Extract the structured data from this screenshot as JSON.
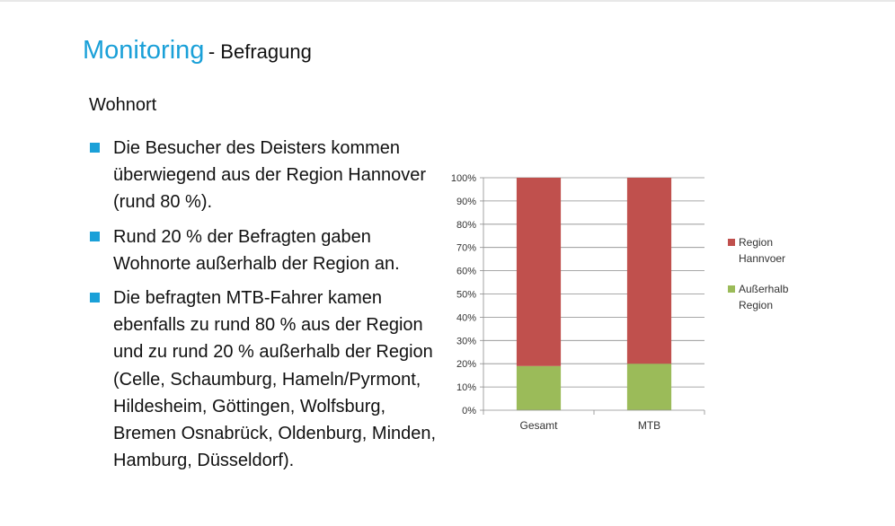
{
  "slide": {
    "title_main": "Monitoring",
    "title_sub": "- Befragung",
    "section_heading": "Wohnort",
    "accent_color": "#1aa0d8",
    "bullets": [
      "Die Besucher des Deisters kommen überwiegend aus der Region Hannover (rund 80 %).",
      "Rund 20 % der Befragten gaben Wohnorte außerhalb der Region an.",
      "Die befragten MTB-Fahrer kamen ebenfalls zu rund 80 % aus der Region und zu rund 20 % außerhalb der Region (Celle, Schaumburg, Hameln/Pyrmont, Hildesheim, Göttingen, Wolfsburg, Bremen Osnabrück, Oldenburg, Minden, Hamburg, Düsseldorf)."
    ]
  },
  "chart_data": {
    "type": "bar",
    "stacked": true,
    "percent_axis": true,
    "categories": [
      "Gesamt",
      "MTB"
    ],
    "series": [
      {
        "name": "Außerhalb Region",
        "values": [
          19,
          20
        ],
        "color": "#9bbb59"
      },
      {
        "name": "Region Hannvoer",
        "values": [
          81,
          80
        ],
        "color": "#c0504d"
      }
    ],
    "legend_order": [
      "Region Hannvoer",
      "Außerhalb Region"
    ],
    "ylim": [
      0,
      100
    ],
    "yticks": [
      "0%",
      "10%",
      "20%",
      "30%",
      "40%",
      "50%",
      "60%",
      "70%",
      "80%",
      "90%",
      "100%"
    ],
    "title": "",
    "xlabel": "",
    "ylabel": "",
    "grid": true,
    "legend_position": "right"
  }
}
